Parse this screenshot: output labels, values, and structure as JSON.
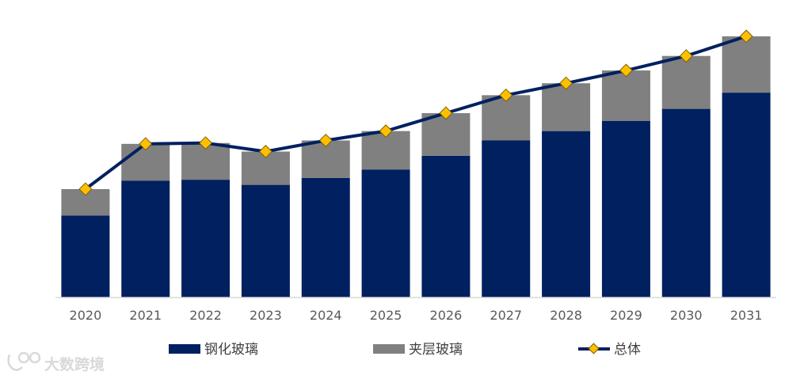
{
  "chart_data": {
    "type": "bar",
    "stacked": true,
    "categories": [
      "2020",
      "2021",
      "2022",
      "2023",
      "2024",
      "2025",
      "2026",
      "2027",
      "2028",
      "2029",
      "2030",
      "2031"
    ],
    "series": [
      {
        "name": "钢化玻璃",
        "kind": "bar",
        "color": "#002060",
        "values": [
          96,
          137,
          138,
          132,
          140,
          150,
          166,
          184,
          195,
          207,
          221,
          240
        ]
      },
      {
        "name": "夹层玻璃",
        "kind": "bar",
        "color": "#808080",
        "values": [
          31,
          43,
          43,
          39,
          44,
          45,
          50,
          53,
          56,
          59,
          62,
          66
        ]
      },
      {
        "name": "总体",
        "kind": "line",
        "color": "#002060",
        "marker_color": "#FFC000",
        "values": [
          127,
          180,
          181,
          171,
          184,
          195,
          216,
          237,
          251,
          266,
          283,
          306
        ]
      }
    ],
    "ylim": [
      0,
      330
    ],
    "title": "",
    "xlabel": "",
    "ylabel": "",
    "legend_position": "bottom"
  },
  "watermark": {
    "text": "大数跨境"
  }
}
